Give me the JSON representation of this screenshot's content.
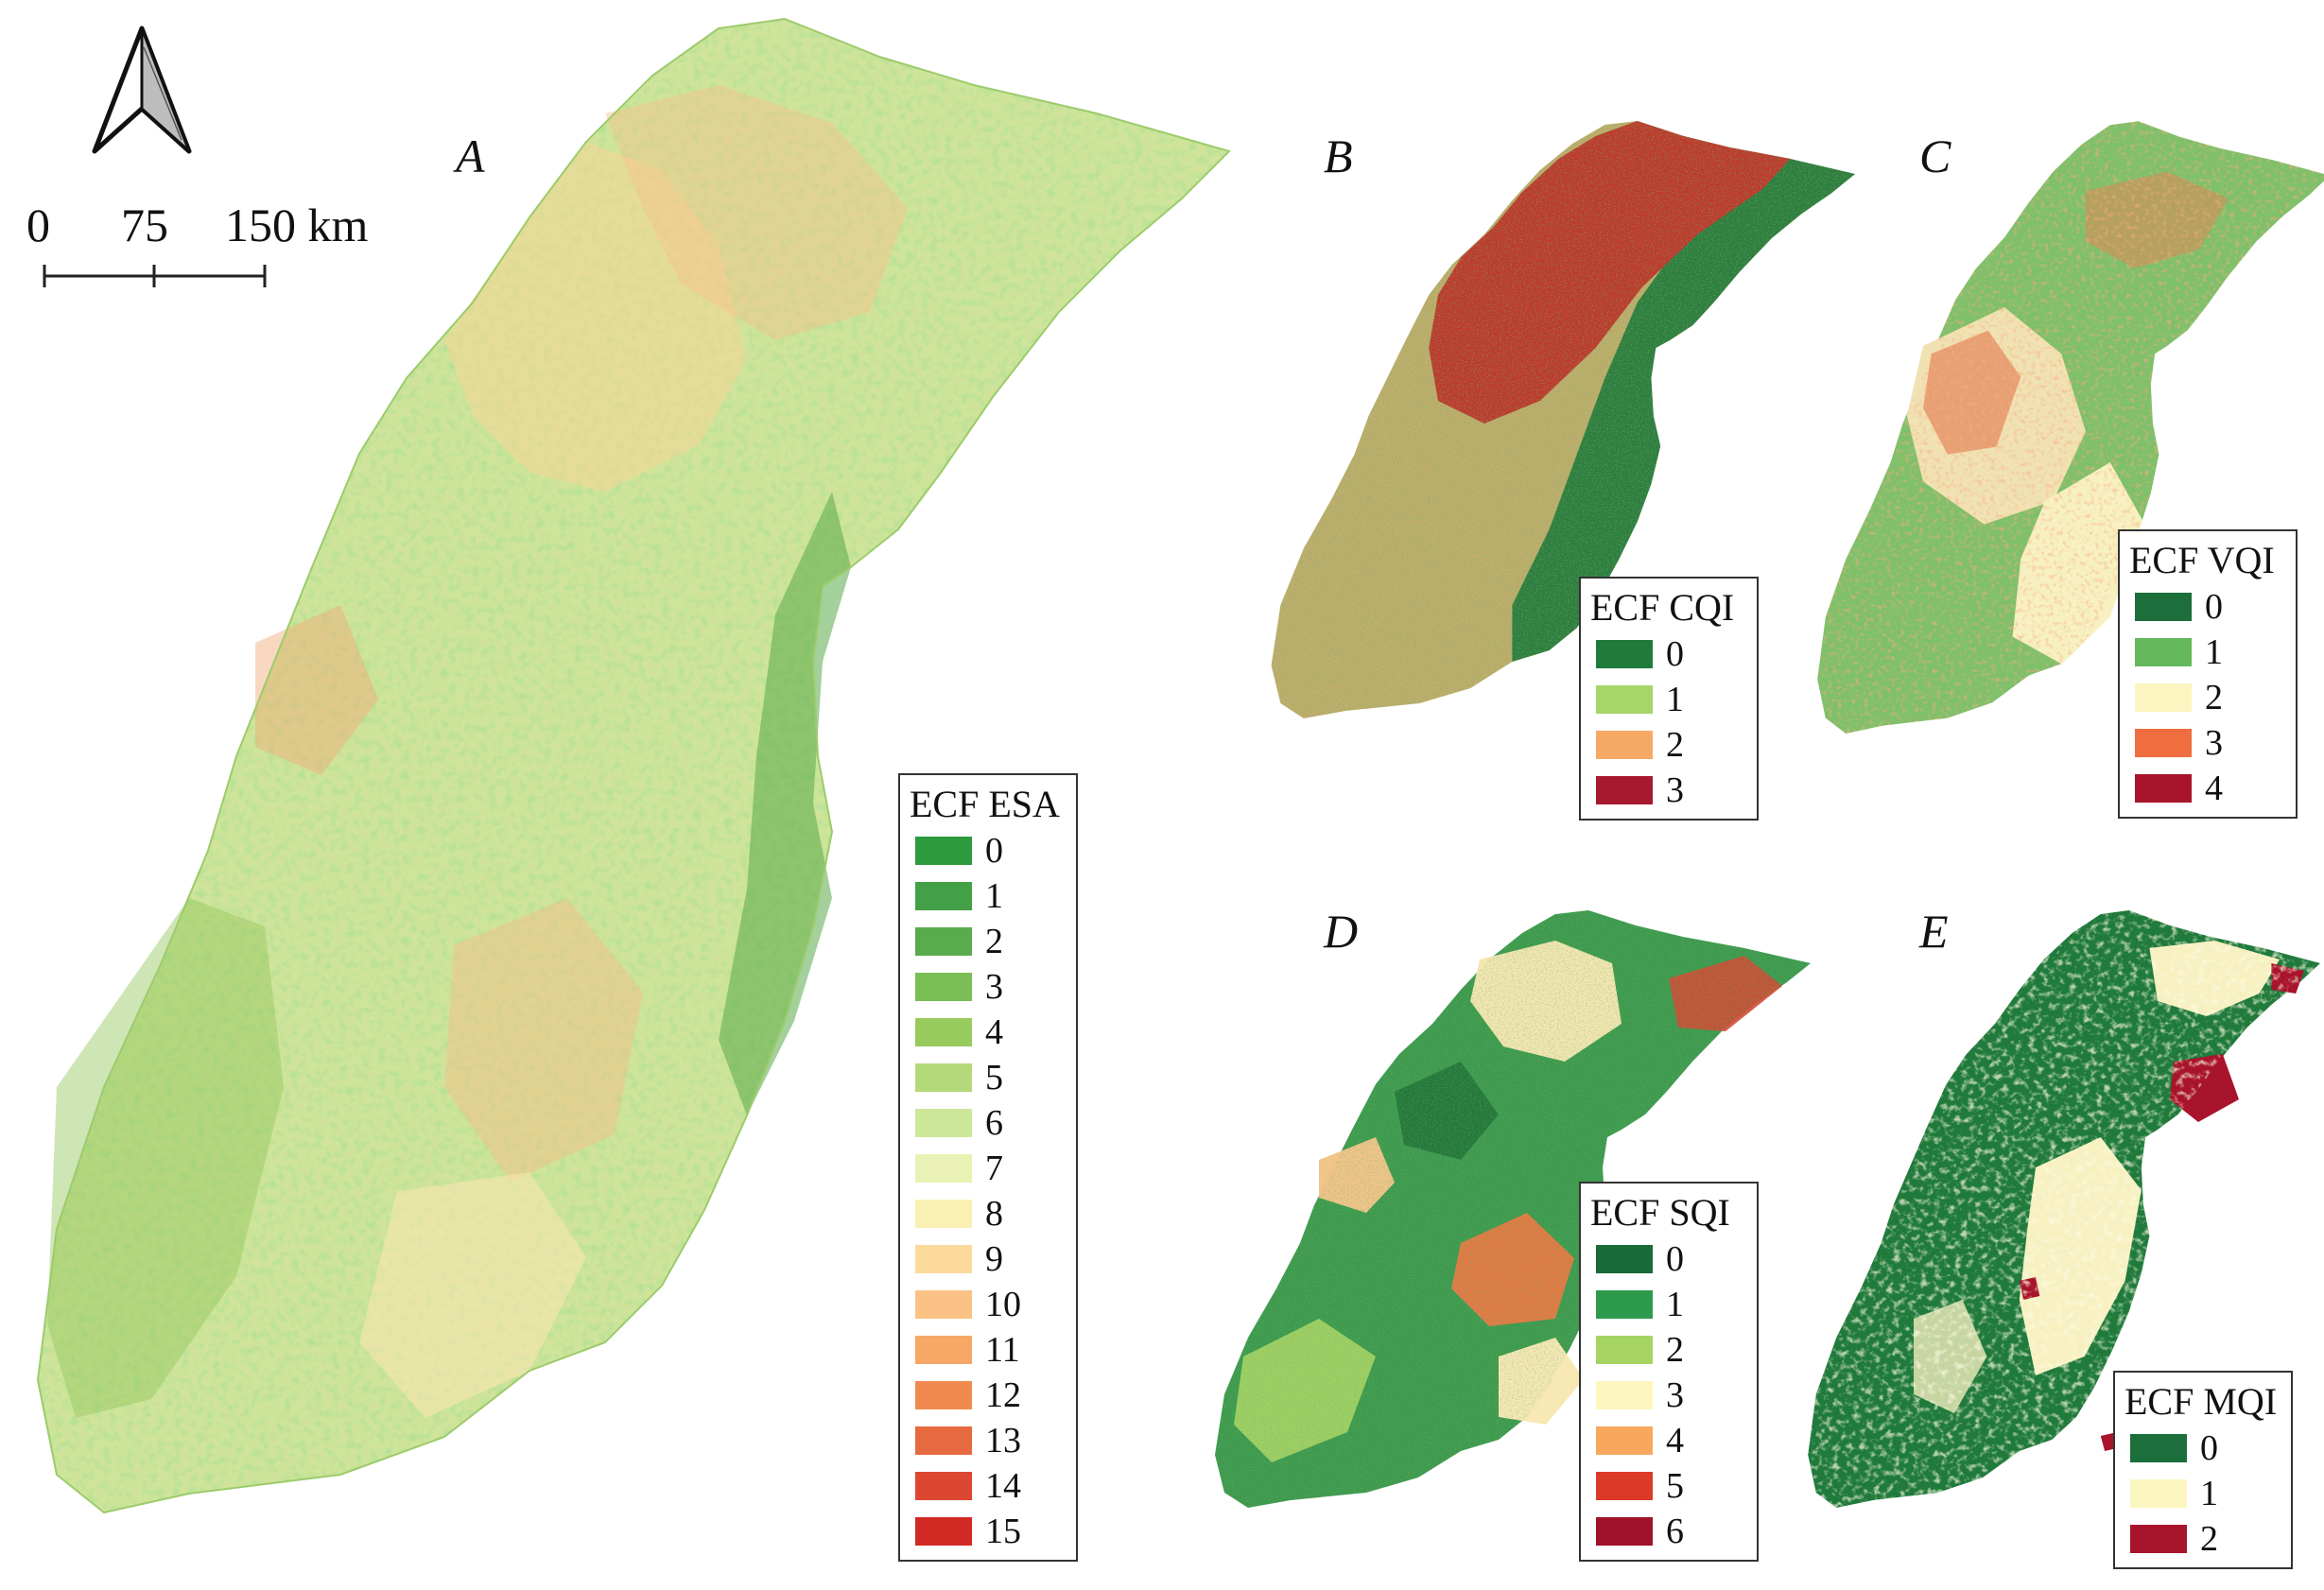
{
  "panels": {
    "A": "A",
    "B": "B",
    "C": "C",
    "D": "D",
    "E": "E"
  },
  "scale_bar": {
    "label_0": "0",
    "label_75": "75",
    "label_150": "150 km"
  },
  "legends": {
    "esa": {
      "title": "ECF ESA",
      "items": [
        {
          "label": "0",
          "color": "#2e9a3e"
        },
        {
          "label": "1",
          "color": "#43a046"
        },
        {
          "label": "2",
          "color": "#5aab4e"
        },
        {
          "label": "3",
          "color": "#79bd55"
        },
        {
          "label": "4",
          "color": "#97cb5e"
        },
        {
          "label": "5",
          "color": "#b3d97a"
        },
        {
          "label": "6",
          "color": "#cde79a"
        },
        {
          "label": "7",
          "color": "#e9f2b4"
        },
        {
          "label": "8",
          "color": "#fbf0b4"
        },
        {
          "label": "9",
          "color": "#fbda9c"
        },
        {
          "label": "10",
          "color": "#fac385"
        },
        {
          "label": "11",
          "color": "#f8a866"
        },
        {
          "label": "12",
          "color": "#f18a4e"
        },
        {
          "label": "13",
          "color": "#e76a40"
        },
        {
          "label": "14",
          "color": "#dc4732"
        },
        {
          "label": "15",
          "color": "#d12a24"
        }
      ]
    },
    "cqi": {
      "title": "ECF CQI",
      "items": [
        {
          "label": "0",
          "color": "#1f7a3c"
        },
        {
          "label": "1",
          "color": "#a6d56a"
        },
        {
          "label": "2",
          "color": "#f6a965"
        },
        {
          "label": "3",
          "color": "#a8182e"
        }
      ]
    },
    "vqi": {
      "title": "ECF VQI",
      "items": [
        {
          "label": "0",
          "color": "#1c6e3a"
        },
        {
          "label": "1",
          "color": "#65b85c"
        },
        {
          "label": "2",
          "color": "#fbf6c0"
        },
        {
          "label": "3",
          "color": "#ef6d3f"
        },
        {
          "label": "4",
          "color": "#a8142b"
        }
      ]
    },
    "sqi": {
      "title": "ECF SQI",
      "items": [
        {
          "label": "0",
          "color": "#186b36"
        },
        {
          "label": "1",
          "color": "#2e9a4d"
        },
        {
          "label": "2",
          "color": "#a6d462"
        },
        {
          "label": "3",
          "color": "#fdf6bf"
        },
        {
          "label": "4",
          "color": "#f8a85c"
        },
        {
          "label": "5",
          "color": "#dc3a29"
        },
        {
          "label": "6",
          "color": "#a0122a"
        }
      ]
    },
    "mqi": {
      "title": "ECF MQI",
      "items": [
        {
          "label": "0",
          "color": "#1c6e3a"
        },
        {
          "label": "1",
          "color": "#fbf6c0"
        },
        {
          "label": "2",
          "color": "#a8142b"
        }
      ]
    }
  }
}
